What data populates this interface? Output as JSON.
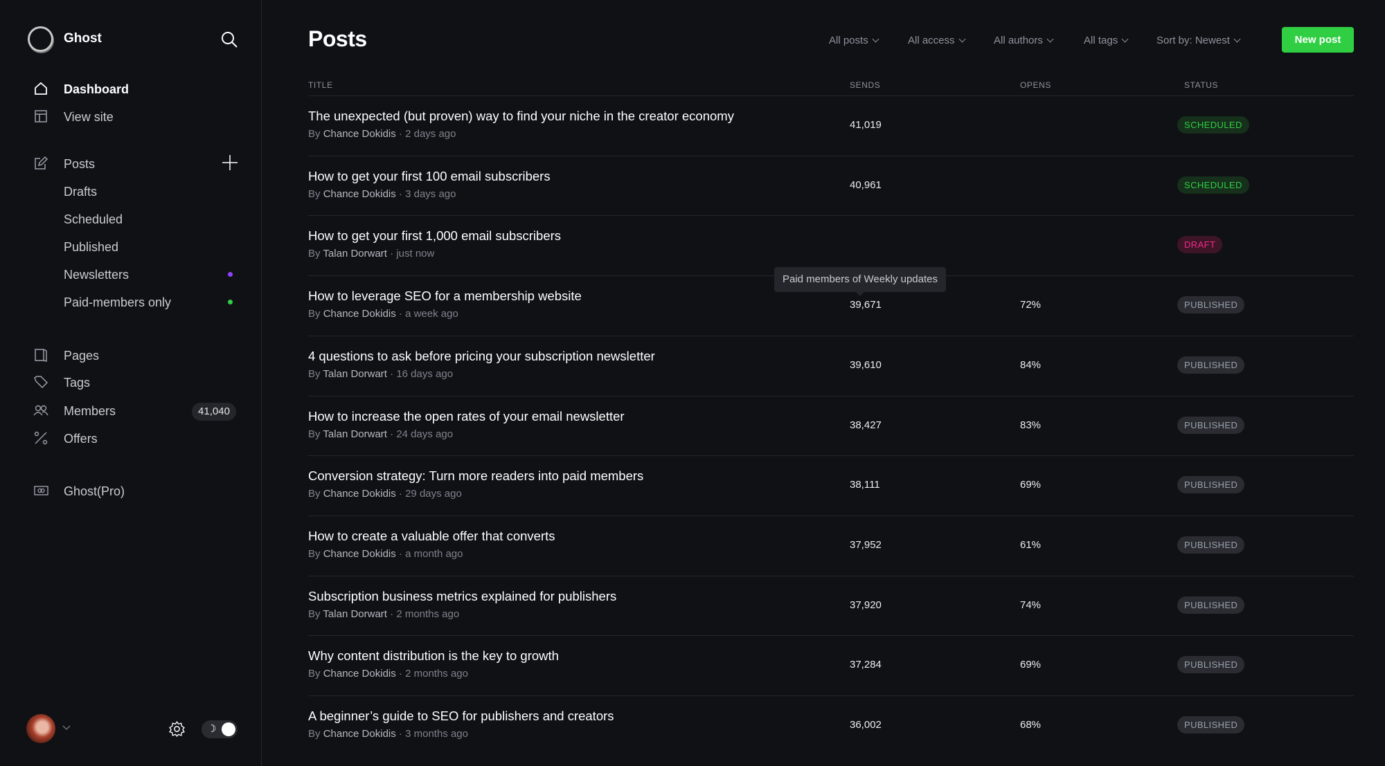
{
  "sidebar": {
    "brand": "Ghost",
    "nav": [
      {
        "label": "Dashboard",
        "icon": "home-icon"
      },
      {
        "label": "View site",
        "icon": "layout-icon"
      }
    ],
    "posts": {
      "label": "Posts",
      "icon": "edit-icon"
    },
    "post_subitems": [
      "Drafts",
      "Scheduled",
      "Published",
      "Newsletters",
      "Paid-members only"
    ],
    "dot_colors": {
      "newsletters": "#8e42ff",
      "paid": "#30cf43"
    },
    "more": [
      {
        "label": "Pages",
        "icon": "pages-icon"
      },
      {
        "label": "Tags",
        "icon": "tag-icon"
      },
      {
        "label": "Members",
        "icon": "members-icon"
      },
      {
        "label": "Offers",
        "icon": "percent-icon"
      }
    ],
    "members_count": "41,040",
    "ghost_pro": "Ghost(Pro)",
    "dark_mode": true
  },
  "header": {
    "title": "Posts",
    "filters": [
      "All posts",
      "All access",
      "All authors",
      "All tags",
      "Sort by: Newest"
    ],
    "new_post": "New post",
    "accent": "#30cf43"
  },
  "table": {
    "columns": [
      "TITLE",
      "SENDS",
      "OPENS",
      "STATUS"
    ],
    "by": "By",
    "rows": [
      {
        "title": "The unexpected (but proven) way to find your niche in the creator economy",
        "author": "Chance Dokidis",
        "time": "2 days ago",
        "sends": "41,019",
        "opens": "",
        "status": "SCHEDULED"
      },
      {
        "title": "How to get your first 100 email subscribers",
        "author": "Chance Dokidis",
        "time": "3 days ago",
        "sends": "40,961",
        "opens": "",
        "status": "SCHEDULED"
      },
      {
        "title": "How to get your first 1,000 email subscribers",
        "author": "Talan Dorwart",
        "time": "just now",
        "sends": "",
        "opens": "",
        "status": "DRAFT"
      },
      {
        "title": "How to leverage SEO for a membership website",
        "author": "Chance Dokidis",
        "time": "a week ago",
        "sends": "39,671",
        "opens": "72%",
        "status": "PUBLISHED"
      },
      {
        "title": "4 questions to ask before pricing your subscription newsletter",
        "author": "Talan Dorwart",
        "time": "16 days ago",
        "sends": "39,610",
        "opens": "84%",
        "status": "PUBLISHED"
      },
      {
        "title": "How to increase the open rates of your email newsletter",
        "author": "Talan Dorwart",
        "time": "24 days ago",
        "sends": "38,427",
        "opens": "83%",
        "status": "PUBLISHED"
      },
      {
        "title": "Conversion strategy: Turn more readers into paid members",
        "author": "Chance Dokidis",
        "time": "29 days ago",
        "sends": "38,111",
        "opens": "69%",
        "status": "PUBLISHED"
      },
      {
        "title": "How to create a valuable offer that converts",
        "author": "Chance Dokidis",
        "time": "a month ago",
        "sends": "37,952",
        "opens": "61%",
        "status": "PUBLISHED"
      },
      {
        "title": "Subscription business metrics explained for publishers",
        "author": "Talan Dorwart",
        "time": "2 months ago",
        "sends": "37,920",
        "opens": "74%",
        "status": "PUBLISHED"
      },
      {
        "title": "Why content distribution is the key to growth",
        "author": "Chance Dokidis",
        "time": "2 months ago",
        "sends": "37,284",
        "opens": "69%",
        "status": "PUBLISHED"
      },
      {
        "title": "A beginner’s guide to SEO for publishers and creators",
        "author": "Chance Dokidis",
        "time": "3 months ago",
        "sends": "36,002",
        "opens": "68%",
        "status": "PUBLISHED"
      }
    ],
    "status_colors": {
      "SCHEDULED": {
        "fg": "#30cf43",
        "bg": "#16301c"
      },
      "DRAFT": {
        "fg": "#ef2b8a",
        "bg": "#3d1526"
      },
      "PUBLISHED": {
        "fg": "#9aa0aa",
        "bg": "#2a2c32"
      }
    }
  },
  "tooltip": "Paid members of Weekly updates"
}
